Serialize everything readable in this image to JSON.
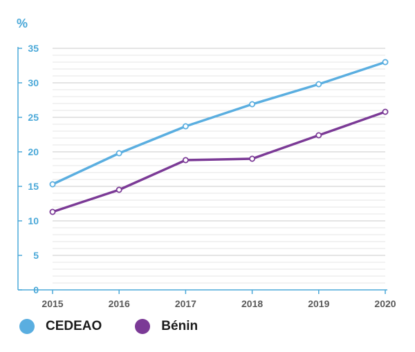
{
  "chart_data": {
    "type": "line",
    "unit_label": "%",
    "x": [
      "2015",
      "2016",
      "2017",
      "2018",
      "2019",
      "2020"
    ],
    "ylim": [
      0,
      35
    ],
    "yticks": [
      0,
      5,
      10,
      15,
      20,
      25,
      30,
      35
    ],
    "minor_grid_step": 1,
    "grid": true,
    "legend_position": "bottom-left",
    "series": [
      {
        "name": "CEDEAO",
        "color": "#5aaee0",
        "values": [
          15.3,
          19.8,
          23.7,
          26.9,
          29.8,
          33.0
        ]
      },
      {
        "name": "Bénin",
        "color": "#7b3a96",
        "values": [
          11.3,
          14.5,
          18.8,
          19.0,
          22.4,
          25.8
        ]
      }
    ]
  }
}
